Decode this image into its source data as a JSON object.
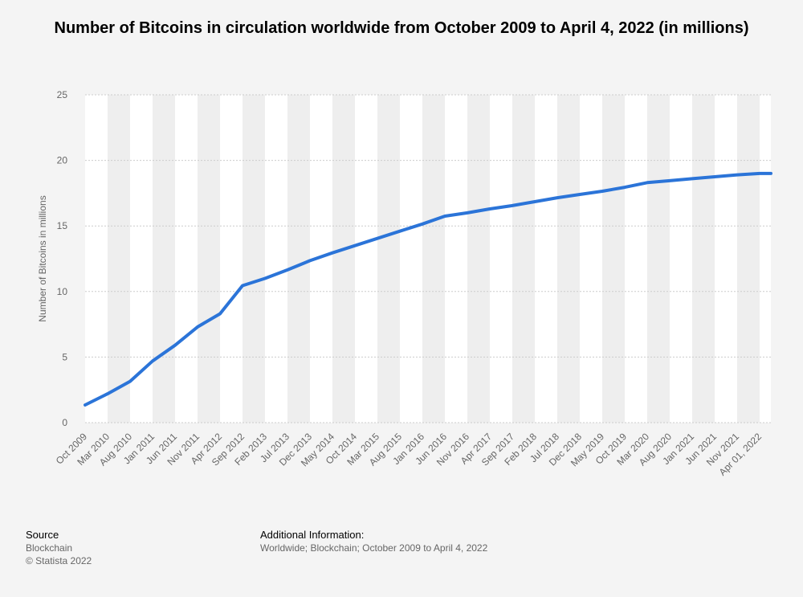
{
  "chart_data": {
    "type": "line",
    "title": "Number of Bitcoins in circulation worldwide from October 2009 to April 4, 2022 (in millions)",
    "ylabel": "Number of Bitcoins in millions",
    "xlabel": "",
    "ylim": [
      0,
      25
    ],
    "yticks": [
      "0",
      "5",
      "10",
      "15",
      "20",
      "25"
    ],
    "grid": true,
    "line_color": "#2b74d8",
    "x_tick_labels": [
      "Oct 2009",
      "Mar 2010",
      "Aug 2010",
      "Jan 2011",
      "Jun 2011",
      "Nov 2011",
      "Apr 2012",
      "Sep 2012",
      "Feb 2013",
      "Jul 2013",
      "Dec 2013",
      "May 2014",
      "Oct 2014",
      "Mar 2015",
      "Aug 2015",
      "Jan 2016",
      "Jun 2016",
      "Nov 2016",
      "Apr 2017",
      "Sep 2017",
      "Feb 2018",
      "Jul 2018",
      "Dec 2018",
      "May 2019",
      "Oct 2019",
      "Mar 2020",
      "Aug 2020",
      "Jan 2021",
      "Jun 2021",
      "Nov 2021",
      "Apr 01, 2022"
    ],
    "x": [
      "Oct 2009",
      "Mar 2010",
      "Aug 2010",
      "Jan 2011",
      "Jun 2011",
      "Nov 2011",
      "Apr 2012",
      "Sep 2012",
      "Feb 2013",
      "Jul 2013",
      "Dec 2013",
      "May 2014",
      "Oct 2014",
      "Mar 2015",
      "Aug 2015",
      "Jan 2016",
      "Jun 2016",
      "Nov 2016",
      "Apr 2017",
      "Sep 2017",
      "Feb 2018",
      "Jul 2018",
      "Dec 2018",
      "May 2019",
      "Oct 2019",
      "Mar 2020",
      "Aug 2020",
      "Jan 2021",
      "Jun 2021",
      "Nov 2021",
      "Apr 01, 2022",
      "Apr 4, 2022"
    ],
    "values": [
      1.35,
      2.2,
      3.15,
      4.7,
      5.9,
      7.3,
      8.3,
      10.45,
      11.0,
      11.65,
      12.35,
      12.95,
      13.5,
      14.05,
      14.6,
      15.15,
      15.75,
      16.0,
      16.3,
      16.55,
      16.85,
      17.15,
      17.4,
      17.65,
      17.95,
      18.3,
      18.45,
      18.6,
      18.75,
      18.9,
      19.0,
      19.0
    ]
  },
  "footer": {
    "source_label": "Source",
    "source_lines": [
      "Blockchain",
      "© Statista 2022"
    ],
    "info_label": "Additional Information:",
    "info_text": "Worldwide; Blockchain; October 2009 to April 4, 2022"
  }
}
